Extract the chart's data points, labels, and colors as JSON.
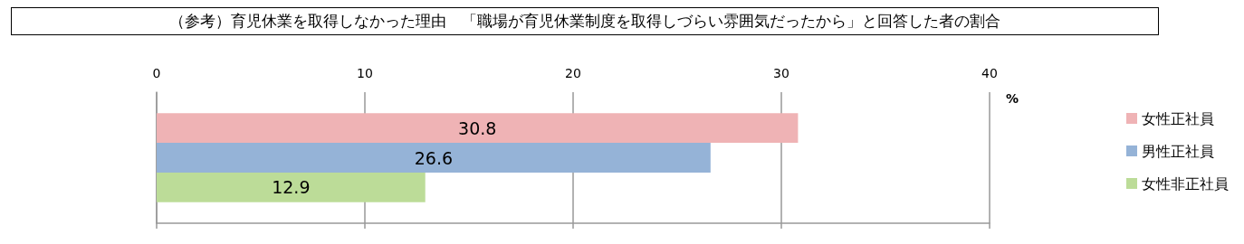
{
  "chart_data": {
    "type": "bar",
    "orientation": "horizontal",
    "title": "（参考）育児休業を取得しなかった理由　「職場が育児休業制度を取得しづらい雰囲気だったから」と回答した者の割合",
    "xlabel": "%",
    "categories": [
      null
    ],
    "series": [
      {
        "name": "女性正社員",
        "color": "#efb3b5",
        "values": [
          30.8
        ]
      },
      {
        "name": "男性正社員",
        "color": "#95b3d7",
        "values": [
          26.6
        ]
      },
      {
        "name": "女性非正社員",
        "color": "#bcdc98",
        "values": [
          12.9
        ]
      }
    ],
    "xlim": [
      0,
      40
    ],
    "xticks": [
      0,
      10,
      20,
      30,
      40
    ],
    "grid": "x",
    "legend": "right",
    "data_labels": true
  }
}
